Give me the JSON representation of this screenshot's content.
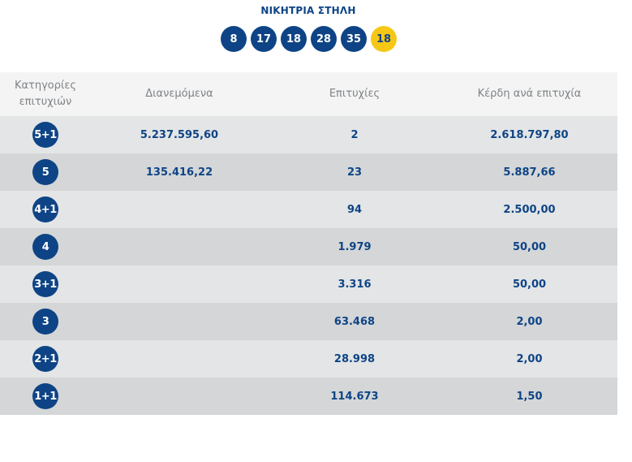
{
  "winning_column": {
    "title": "ΝΙΚΗΤΡΙΑ ΣΤΗΛΗ",
    "numbers": [
      "8",
      "17",
      "18",
      "28",
      "35"
    ],
    "bonus": "18",
    "colors": {
      "ball": "#0e4486",
      "bonus": "#f7c716"
    }
  },
  "table": {
    "headers": {
      "category_line1": "Κατηγορίες",
      "category_line2": "επιτυχιών",
      "distributed": "Διανεμόμενα",
      "winners": "Επιτυχίες",
      "prize": "Κέρδη ανά επιτυχία"
    },
    "rows": [
      {
        "category": "5+1",
        "distributed": "5.237.595,60",
        "winners": "2",
        "prize": "2.618.797,80"
      },
      {
        "category": "5",
        "distributed": "135.416,22",
        "winners": "23",
        "prize": "5.887,66"
      },
      {
        "category": "4+1",
        "distributed": "",
        "winners": "94",
        "prize": "2.500,00"
      },
      {
        "category": "4",
        "distributed": "",
        "winners": "1.979",
        "prize": "50,00"
      },
      {
        "category": "3+1",
        "distributed": "",
        "winners": "3.316",
        "prize": "50,00"
      },
      {
        "category": "3",
        "distributed": "",
        "winners": "63.468",
        "prize": "2,00"
      },
      {
        "category": "2+1",
        "distributed": "",
        "winners": "28.998",
        "prize": "2,00"
      },
      {
        "category": "1+1",
        "distributed": "",
        "winners": "114.673",
        "prize": "1,50"
      }
    ]
  }
}
